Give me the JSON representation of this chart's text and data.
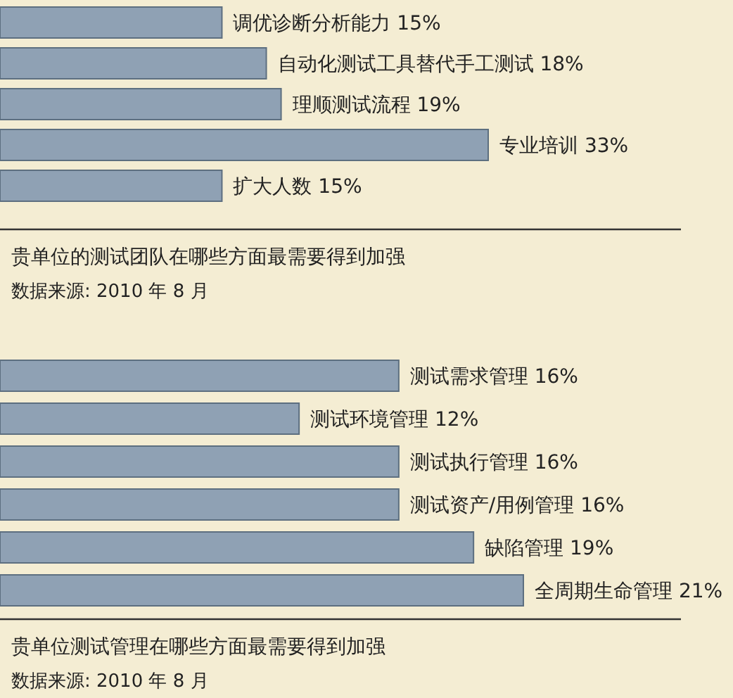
{
  "chart_data": [
    {
      "type": "bar",
      "orientation": "horizontal",
      "title": "贵单位的测试团队在哪些方面最需要得到加强",
      "annotations": [
        "数据来源: 2010 年 8 月"
      ],
      "categories": [
        null,
        null,
        null,
        null,
        null
      ],
      "values": [
        15,
        18,
        19,
        33,
        15
      ],
      "value_labels": [
        "调优诊断分析能力 15%",
        "自动化测试工具替代手工测试 18%",
        "理顺测试流程 19%",
        "专业培训 33%",
        "扩大人数 15%"
      ],
      "color": "#8fa1b4"
    },
    {
      "type": "bar",
      "orientation": "horizontal",
      "title": "贵单位测试管理在哪些方面最需要得到加强",
      "annotations": [
        "数据来源: 2010 年 8 月"
      ],
      "categories": [
        null,
        null,
        null,
        null,
        null,
        null
      ],
      "values": [
        16,
        12,
        16,
        16,
        19,
        21
      ],
      "value_labels": [
        "测试需求管理 16%",
        "测试环境管理 12%",
        "测试执行管理 16%",
        "测试资产/用例管理 16%",
        "缺陷管理 19%",
        "全周期生命管理 21%"
      ],
      "color": "#8fa1b4"
    }
  ]
}
